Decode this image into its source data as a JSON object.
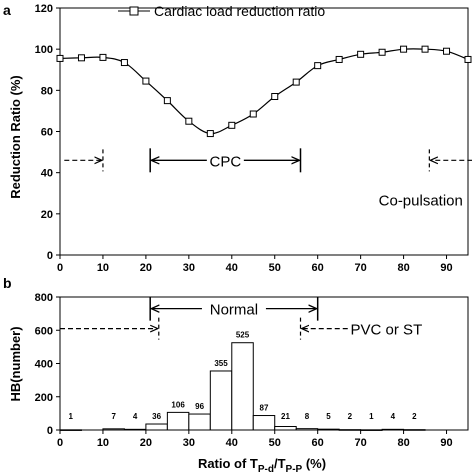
{
  "chart_data": [
    {
      "panel": "a",
      "type": "line",
      "legend": {
        "entry": "Cardiac load reduction ratio",
        "placement": "top-center"
      },
      "ylabel": "Reduction Ratio (%)",
      "xlabel": "",
      "xlim": [
        0,
        95
      ],
      "ylim": [
        0,
        120
      ],
      "xticks": [
        0,
        10,
        20,
        30,
        40,
        50,
        60,
        70,
        80,
        90
      ],
      "yticks": [
        0,
        20,
        40,
        60,
        80,
        100,
        120
      ],
      "series": [
        {
          "marker": "open-square",
          "x": [
            0,
            5,
            10,
            15,
            20,
            25,
            30,
            35,
            40,
            45,
            50,
            55,
            60,
            65,
            70,
            75,
            80,
            85,
            90,
            95
          ],
          "y": [
            95.5,
            95.8,
            96,
            93.5,
            84.5,
            75,
            65,
            59,
            63,
            68.5,
            77,
            84,
            92,
            95,
            97.5,
            98.5,
            100,
            100,
            99,
            95
          ]
        }
      ],
      "annotations": [
        {
          "text": "CPC",
          "x_from": 21,
          "x_to": 56,
          "y": 46,
          "arrow": "span"
        },
        {
          "text": "Co-pulsation",
          "x": 84,
          "y": 27
        },
        {
          "text": "",
          "x_from": 1,
          "x_to": 10,
          "y": 46,
          "arrow": "right-dashed"
        },
        {
          "text": "",
          "x_from": 86,
          "x_to": 96,
          "y": 46,
          "arrow": "left-dashed"
        }
      ]
    },
    {
      "panel": "b",
      "type": "bar",
      "ylabel": "HB(number)",
      "xlabel_parts": {
        "prefix": "Ratio of T",
        "sub1": "P-d",
        "mid": "/T",
        "sub2": "P-P",
        "suffix": " (%)"
      },
      "xlim": [
        0,
        95
      ],
      "ylim": [
        0,
        800
      ],
      "xticks": [
        0,
        10,
        20,
        30,
        40,
        50,
        60,
        70,
        80,
        90
      ],
      "yticks": [
        0,
        200,
        400,
        600,
        800
      ],
      "bin_width": 5,
      "bins_start": [
        0,
        5,
        10,
        15,
        20,
        25,
        30,
        35,
        40,
        45,
        50,
        55,
        60,
        65,
        70,
        75,
        80,
        85,
        90
      ],
      "values": [
        1,
        0,
        7,
        4,
        36,
        106,
        96,
        355,
        525,
        87,
        21,
        8,
        5,
        2,
        1,
        4,
        2,
        0,
        0
      ],
      "labels": [
        "1",
        "",
        "7",
        "4",
        "36",
        "106",
        "96",
        "355",
        "525",
        "87",
        "21",
        "8",
        "5",
        "2",
        "1",
        "4",
        "2",
        "",
        ""
      ],
      "annotations": [
        {
          "text": "Normal",
          "x_from": 21,
          "x_to": 60,
          "y": 730,
          "arrow": "span"
        },
        {
          "text": "PVC or ST",
          "x": 76,
          "y": 610
        },
        {
          "text": "",
          "x_from": 0,
          "x_to": 23,
          "y": 610,
          "arrow": "right-dashed"
        },
        {
          "text": "",
          "x_from": 56,
          "x_to": 67,
          "y": 610,
          "arrow": "left-dashed"
        }
      ]
    }
  ]
}
